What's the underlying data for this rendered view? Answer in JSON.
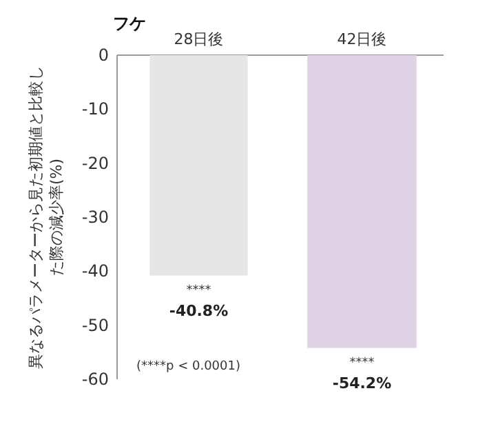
{
  "chart_data": {
    "type": "bar",
    "title": "フケ",
    "ylabel": "異なるパラメーターから見た初期値と比較した際の減少率(%)",
    "categories": [
      "28日後",
      "42日後"
    ],
    "values": [
      -40.8,
      -54.2
    ],
    "colors": [
      "#e6e6e6",
      "#e0d3e6"
    ],
    "value_labels": [
      "-40.8%",
      "-54.2%"
    ],
    "ylim": [
      -60,
      0
    ],
    "yticks": [
      0,
      -10,
      -20,
      -30,
      -40,
      -50,
      -60
    ],
    "annotations": [
      {
        "text": "****",
        "x": "28日後",
        "y": -40.8
      },
      {
        "text": "****",
        "x": "42日後",
        "y": -54.2
      },
      "(****p < 0.0001)"
    ]
  }
}
